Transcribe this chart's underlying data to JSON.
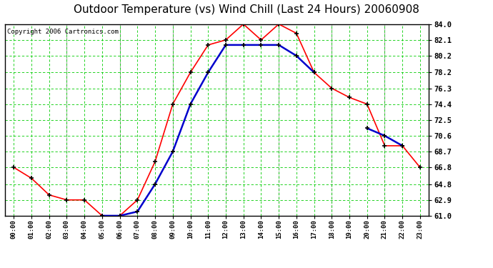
{
  "title": "Outdoor Temperature (vs) Wind Chill (Last 24 Hours) 20060908",
  "copyright": "Copyright 2006 Cartronics.com",
  "x_labels": [
    "00:00",
    "01:00",
    "02:00",
    "03:00",
    "04:00",
    "05:00",
    "06:00",
    "07:00",
    "08:00",
    "09:00",
    "10:00",
    "11:00",
    "12:00",
    "13:00",
    "14:00",
    "15:00",
    "16:00",
    "17:00",
    "18:00",
    "19:00",
    "20:00",
    "21:00",
    "22:00",
    "23:00"
  ],
  "temp_red": [
    66.8,
    65.5,
    63.5,
    62.9,
    62.9,
    61.0,
    61.0,
    62.9,
    67.5,
    74.4,
    78.2,
    81.5,
    82.1,
    84.0,
    82.1,
    84.0,
    82.9,
    78.2,
    76.3,
    75.2,
    74.4,
    69.4,
    69.4,
    66.8
  ],
  "wind_chill_blue": [
    null,
    null,
    null,
    null,
    null,
    61.0,
    61.0,
    61.5,
    64.8,
    68.7,
    74.4,
    78.2,
    81.5,
    81.5,
    81.5,
    81.5,
    80.2,
    78.2,
    null,
    null,
    71.5,
    70.6,
    69.4,
    null
  ],
  "ylim_min": 61.0,
  "ylim_max": 84.0,
  "yticks": [
    61.0,
    62.9,
    64.8,
    66.8,
    68.7,
    70.6,
    72.5,
    74.4,
    76.3,
    78.2,
    80.2,
    82.1,
    84.0
  ],
  "bg_color": "#ffffff",
  "plot_bg": "#ffffff",
  "grid_color": "#00cc00",
  "border_color": "#000000",
  "red_color": "#ff0000",
  "blue_color": "#0000cc",
  "title_fontsize": 11,
  "copyright_fontsize": 6.5,
  "vgrid_color": "#aaaaaa"
}
